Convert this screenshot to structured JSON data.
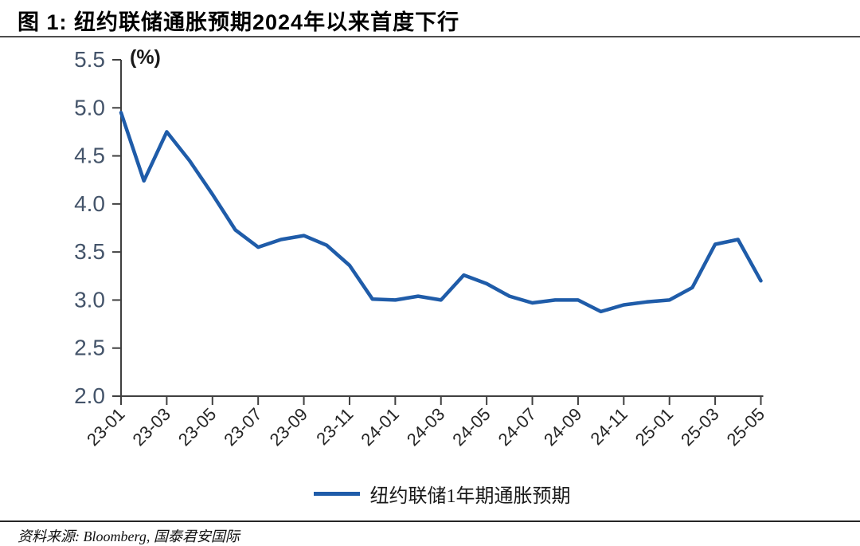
{
  "header": {
    "title": "图 1:  纽约联储通胀预期2024年以来首度下行"
  },
  "chart_data": {
    "type": "line",
    "title": "图 1:  纽约联储通胀预期2024年以来首度下行",
    "unit_label": "(%)",
    "xlabel": "",
    "ylabel": "(%)",
    "ylim": [
      2.0,
      5.5
    ],
    "ytick_step": 0.5,
    "xtick_every": 2,
    "grid": "off",
    "legend_position": "bottom",
    "axis_color": "#3f3f3f",
    "ytick_label_color": "#44546A",
    "xtick_label_color": "#262626",
    "categories": [
      "23-01",
      "23-02",
      "23-03",
      "23-04",
      "23-05",
      "23-06",
      "23-07",
      "23-08",
      "23-09",
      "23-10",
      "23-11",
      "23-12",
      "24-01",
      "24-02",
      "24-03",
      "24-04",
      "24-05",
      "24-06",
      "24-07",
      "24-08",
      "24-09",
      "24-10",
      "24-11",
      "24-12",
      "25-01",
      "25-02",
      "25-03",
      "25-04",
      "25-05"
    ],
    "series": [
      {
        "name": "纽约联储1年期通胀预期",
        "color": "#1F5CA9",
        "values": [
          4.95,
          4.24,
          4.75,
          4.45,
          4.1,
          3.73,
          3.55,
          3.63,
          3.67,
          3.57,
          3.36,
          3.01,
          3.0,
          3.04,
          3.0,
          3.26,
          3.17,
          3.04,
          2.97,
          3.0,
          3.0,
          2.88,
          2.95,
          2.98,
          3.0,
          3.13,
          3.58,
          3.63,
          3.2
        ]
      }
    ]
  },
  "footer": {
    "source": "资料来源: Bloomberg, 国泰君安国际"
  }
}
